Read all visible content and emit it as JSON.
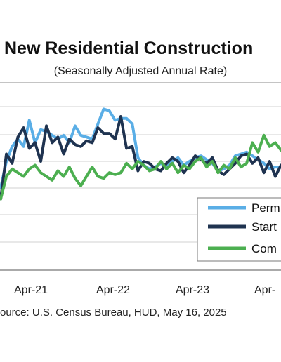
{
  "chart_data": {
    "type": "line",
    "title": "New Residential Construction",
    "subtitle": "(Seasonally Adjusted Annual Rate)",
    "source": "ource:  U.S. Census Bureau, HUD, May 16, 2025",
    "x_tick_labels": [
      "Apr-21",
      "Apr-22",
      "Apr-23",
      "Apr-"
    ],
    "x_start": "2020-06",
    "x_end": "2024-08",
    "legend": {
      "placement": "bottom-right",
      "entries": [
        "Perm",
        "Start",
        "Com"
      ]
    },
    "grid": "horizontal",
    "series": [
      {
        "name": "Perm",
        "color": "#5aaee6",
        "values": [
          1.34,
          1.48,
          1.56,
          1.6,
          1.56,
          1.7,
          1.58,
          1.65,
          1.64,
          1.62,
          1.6,
          1.62,
          1.58,
          1.67,
          1.62,
          1.61,
          1.6,
          1.68,
          1.76,
          1.75,
          1.7,
          1.71,
          1.71,
          1.68,
          1.5,
          1.46,
          1.44,
          1.45,
          1.47,
          1.45,
          1.48,
          1.5,
          1.46,
          1.48,
          1.5,
          1.51,
          1.49,
          1.47,
          1.43,
          1.44,
          1.46,
          1.51,
          1.52,
          1.53,
          1.51,
          1.49,
          1.47,
          1.44,
          1.45,
          1.45
        ]
      },
      {
        "name": "Start",
        "color": "#1f3350",
        "values": [
          1.28,
          1.52,
          1.47,
          1.61,
          1.66,
          1.55,
          1.58,
          1.48,
          1.67,
          1.58,
          1.61,
          1.52,
          1.6,
          1.57,
          1.56,
          1.59,
          1.58,
          1.66,
          1.63,
          1.63,
          1.6,
          1.72,
          1.55,
          1.56,
          1.43,
          1.48,
          1.47,
          1.44,
          1.43,
          1.47,
          1.5,
          1.48,
          1.42,
          1.46,
          1.51,
          1.49,
          1.47,
          1.5,
          1.43,
          1.41,
          1.44,
          1.47,
          1.51,
          1.52,
          1.47,
          1.5,
          1.42,
          1.48,
          1.4,
          1.46
        ]
      },
      {
        "name": "Com",
        "color": "#4caf50",
        "values": [
          1.28,
          1.4,
          1.44,
          1.42,
          1.4,
          1.44,
          1.46,
          1.42,
          1.4,
          1.38,
          1.43,
          1.4,
          1.45,
          1.39,
          1.35,
          1.4,
          1.45,
          1.4,
          1.39,
          1.42,
          1.41,
          1.42,
          1.47,
          1.44,
          1.48,
          1.46,
          1.43,
          1.44,
          1.48,
          1.44,
          1.47,
          1.42,
          1.46,
          1.44,
          1.48,
          1.5,
          1.45,
          1.48,
          1.42,
          1.46,
          1.44,
          1.5,
          1.45,
          1.47,
          1.58,
          1.53,
          1.62,
          1.56,
          1.58,
          1.54
        ]
      }
    ]
  }
}
